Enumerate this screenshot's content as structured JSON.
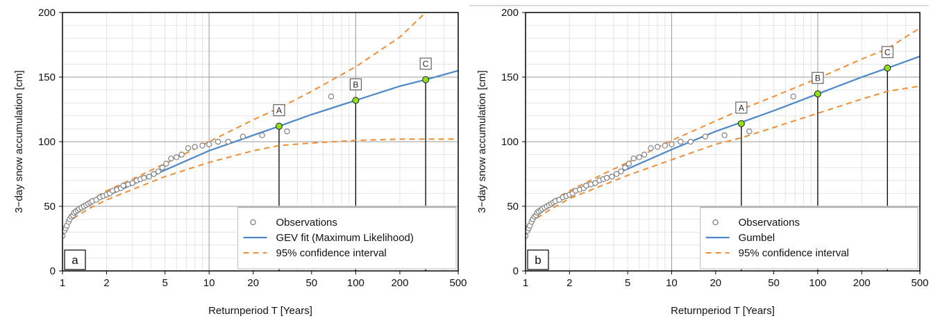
{
  "chart_data": [
    {
      "type": "scatter",
      "panel_label": "a",
      "xlabel": "Returnperiod T [Years]",
      "ylabel": "3−day snow accumulation [cm]",
      "xscale": "log",
      "xlim": [
        1,
        500
      ],
      "ylim": [
        0,
        200
      ],
      "x_ticks": [
        1,
        2,
        5,
        10,
        20,
        50,
        100,
        200,
        500
      ],
      "x_tick_labels": [
        "1",
        "2",
        "5",
        "10",
        "20",
        "50",
        "100",
        "200",
        "500"
      ],
      "y_ticks": [
        0,
        50,
        100,
        150,
        200
      ],
      "y_tick_labels": [
        "0",
        "50",
        "100",
        "150",
        "200"
      ],
      "grid": true,
      "legend_position": "bottom-right",
      "series": [
        {
          "name": "Observations",
          "kind": "scatter",
          "marker": "open-circle",
          "color": "#808080",
          "x": [
            1.0,
            1.03,
            1.05,
            1.07,
            1.1,
            1.12,
            1.15,
            1.18,
            1.2,
            1.23,
            1.27,
            1.3,
            1.35,
            1.4,
            1.45,
            1.5,
            1.55,
            1.6,
            1.7,
            1.8,
            1.9,
            2.0,
            2.1,
            2.2,
            2.35,
            2.5,
            2.6,
            2.8,
            3.0,
            3.2,
            3.4,
            3.6,
            3.9,
            4.2,
            4.5,
            4.8,
            5.1,
            5.5,
            6.0,
            6.5,
            7.2,
            8.0,
            9.0,
            10.0,
            11.5,
            13.5,
            17.0,
            23.0,
            34.0,
            68.0
          ],
          "y": [
            27,
            31,
            33,
            35,
            38,
            40,
            42,
            43,
            45,
            46,
            47,
            48,
            49,
            50,
            51,
            52,
            53,
            54,
            55,
            57,
            58,
            59,
            60,
            62,
            63,
            64,
            66,
            67,
            68,
            70,
            71,
            72,
            73,
            75,
            77,
            80,
            83,
            87,
            88,
            90,
            95,
            96,
            97,
            98,
            100,
            100,
            104,
            105,
            108,
            135
          ]
        },
        {
          "name": "GEV fit (Maximum Likelihood)",
          "kind": "line",
          "color": "#4a86c8",
          "x": [
            1.0,
            1.1,
            1.2,
            1.5,
            2,
            3,
            5,
            10,
            20,
            30,
            50,
            100,
            200,
            300,
            500
          ],
          "y": [
            30,
            38,
            43,
            51,
            58,
            67,
            78,
            93,
            105,
            112,
            121,
            132,
            143,
            148,
            155
          ]
        },
        {
          "name": "95% confidence interval",
          "kind": "dashed-line",
          "color": "#f08c32",
          "x": [
            1.0,
            1.1,
            1.2,
            1.5,
            2,
            3,
            5,
            10,
            20,
            30,
            50,
            100,
            200,
            300
          ],
          "y": [
            32,
            40,
            45,
            54,
            62,
            71,
            83,
            100,
            117,
            126,
            139,
            158,
            181,
            200
          ]
        },
        {
          "name": "",
          "kind": "dashed-line",
          "color": "#f08c32",
          "x": [
            1.0,
            1.1,
            1.2,
            1.5,
            2,
            3,
            5,
            10,
            20,
            30,
            50,
            100,
            200,
            300,
            500
          ],
          "y": [
            28,
            36,
            41,
            48,
            55,
            63,
            73,
            84,
            93,
            97,
            99,
            101,
            102,
            102,
            102
          ]
        }
      ],
      "markers": [
        {
          "label": "A",
          "x": 30,
          "y": 112
        },
        {
          "label": "B",
          "x": 100,
          "y": 132
        },
        {
          "label": "C",
          "x": 300,
          "y": 148
        }
      ],
      "legend_entries": [
        "Observations",
        "GEV fit (Maximum Likelihood)",
        "95% confidence interval"
      ]
    },
    {
      "type": "scatter",
      "panel_label": "b",
      "xlabel": "Returnperiod T [Years]",
      "ylabel": "3−day snow accumulation [cm]",
      "xscale": "log",
      "xlim": [
        1,
        500
      ],
      "ylim": [
        0,
        200
      ],
      "x_ticks": [
        1,
        2,
        5,
        10,
        20,
        50,
        100,
        200,
        500
      ],
      "x_tick_labels": [
        "1",
        "2",
        "5",
        "10",
        "20",
        "50",
        "100",
        "200",
        "500"
      ],
      "y_ticks": [
        0,
        50,
        100,
        150,
        200
      ],
      "y_tick_labels": [
        "0",
        "50",
        "100",
        "150",
        "200"
      ],
      "grid": true,
      "legend_position": "bottom-right",
      "series": [
        {
          "name": "Observations",
          "kind": "scatter",
          "marker": "open-circle",
          "color": "#808080",
          "x": [
            1.0,
            1.03,
            1.05,
            1.07,
            1.1,
            1.12,
            1.15,
            1.18,
            1.2,
            1.23,
            1.27,
            1.3,
            1.35,
            1.4,
            1.45,
            1.5,
            1.55,
            1.6,
            1.7,
            1.8,
            1.9,
            2.0,
            2.1,
            2.2,
            2.35,
            2.5,
            2.6,
            2.8,
            3.0,
            3.2,
            3.4,
            3.6,
            3.9,
            4.2,
            4.5,
            4.8,
            5.1,
            5.5,
            6.0,
            6.5,
            7.2,
            8.0,
            9.0,
            10.0,
            11.5,
            13.5,
            17.0,
            23.0,
            34.0,
            68.0
          ],
          "y": [
            27,
            31,
            33,
            35,
            38,
            40,
            42,
            43,
            45,
            46,
            47,
            48,
            49,
            50,
            51,
            52,
            53,
            54,
            55,
            57,
            58,
            59,
            60,
            62,
            63,
            64,
            66,
            67,
            68,
            70,
            71,
            72,
            73,
            75,
            77,
            80,
            83,
            87,
            88,
            90,
            95,
            96,
            97,
            98,
            100,
            100,
            104,
            105,
            108,
            135
          ]
        },
        {
          "name": "Gumbel",
          "kind": "line",
          "color": "#4a86c8",
          "x": [
            1.0,
            1.1,
            1.2,
            1.5,
            2,
            3,
            5,
            10,
            20,
            30,
            50,
            100,
            200,
            300,
            500
          ],
          "y": [
            31,
            39,
            43,
            51,
            59,
            68,
            79,
            94,
            108,
            115,
            124,
            137,
            150,
            157,
            166
          ]
        },
        {
          "name": "95% confidence interval",
          "kind": "dashed-line",
          "color": "#f08c32",
          "x": [
            1.0,
            1.1,
            1.2,
            1.5,
            2,
            3,
            5,
            10,
            20,
            30,
            50,
            100,
            200,
            300,
            500
          ],
          "y": [
            33,
            41,
            45,
            54,
            62,
            72,
            84,
            101,
            116,
            125,
            135,
            149,
            164,
            172,
            188
          ]
        },
        {
          "name": "",
          "kind": "dashed-line",
          "color": "#f08c32",
          "x": [
            1.0,
            1.1,
            1.2,
            1.5,
            2,
            3,
            5,
            10,
            20,
            30,
            50,
            100,
            200,
            300,
            500
          ],
          "y": [
            29,
            37,
            41,
            48,
            56,
            64,
            74,
            86,
            98,
            103,
            111,
            122,
            133,
            139,
            143
          ]
        }
      ],
      "markers": [
        {
          "label": "A",
          "x": 30,
          "y": 114
        },
        {
          "label": "B",
          "x": 100,
          "y": 137
        },
        {
          "label": "C",
          "x": 300,
          "y": 157
        }
      ],
      "legend_entries": [
        "Observations",
        "Gumbel",
        "95% confidence interval"
      ]
    }
  ]
}
